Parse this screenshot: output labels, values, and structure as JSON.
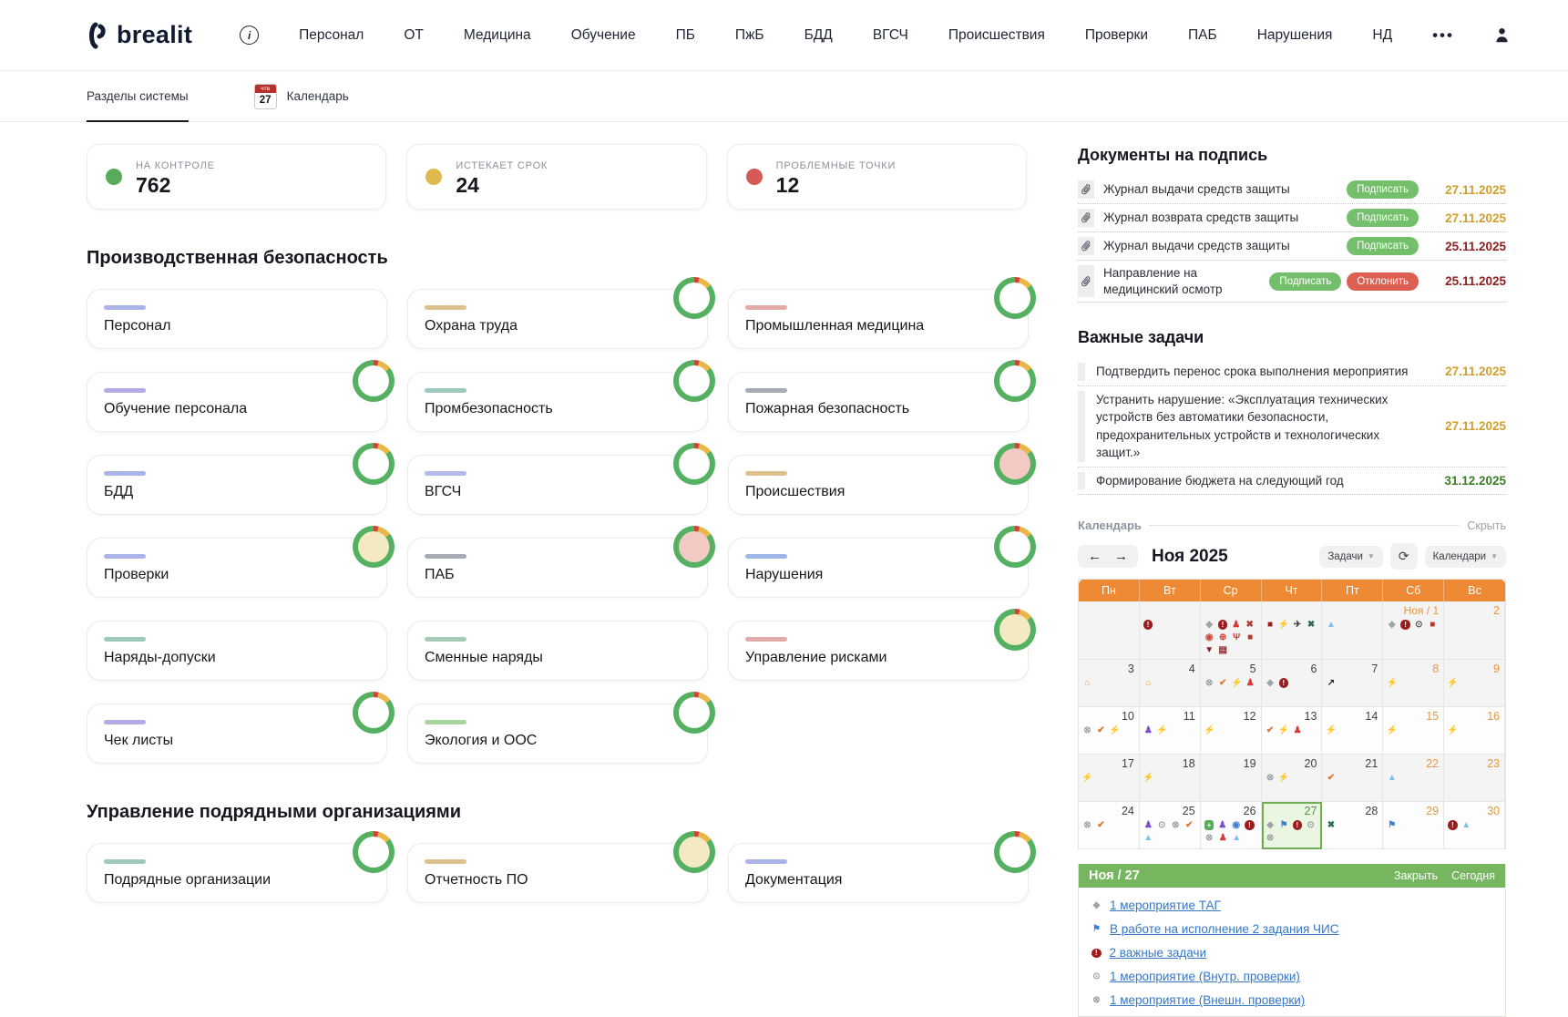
{
  "brand": {
    "name": "brealit"
  },
  "nav": {
    "items": [
      "Персонал",
      "ОТ",
      "Медицина",
      "Обучение",
      "ПБ",
      "ПжБ",
      "БДД",
      "ВГСЧ",
      "Происшествия",
      "Проверки",
      "ПАБ",
      "Нарушения",
      "НД"
    ],
    "more_label": "•••"
  },
  "tabs": {
    "sections_label": "Разделы системы",
    "calendar_label": "Календарь",
    "calendar_icon_dow": "чтв",
    "calendar_icon_day": "27"
  },
  "stats": [
    {
      "label": "НА КОНТРОЛЕ",
      "value": "762",
      "color": "#57ab5a"
    },
    {
      "label": "ИСТЕКАЕТ СРОК",
      "value": "24",
      "color": "#e0b94e"
    },
    {
      "label": "ПРОБЛЕМНЫЕ ТОЧКИ",
      "value": "12",
      "color": "#d45b55"
    }
  ],
  "sections": [
    {
      "title": "Производственная безопасность",
      "cards": [
        {
          "title": "Персонал",
          "tag_color": "#aab4e8",
          "donut": "none"
        },
        {
          "title": "Охрана труда",
          "tag_color": "#dec08f",
          "donut": "white"
        },
        {
          "title": "Промышленная медицина",
          "tag_color": "#e4a9a9",
          "donut": "white"
        },
        {
          "title": "Обучение персонала",
          "tag_color": "#b3aae6",
          "donut": "white"
        },
        {
          "title": "Промбезопасность",
          "tag_color": "#9fc9bd",
          "donut": "white"
        },
        {
          "title": "Пожарная безопасность",
          "tag_color": "#a7abb3",
          "donut": "white"
        },
        {
          "title": "БДД",
          "tag_color": "#aab4e8",
          "donut": "white"
        },
        {
          "title": "ВГСЧ",
          "tag_color": "#b3b9ea",
          "donut": "white"
        },
        {
          "title": "Происшествия",
          "tag_color": "#dec08f",
          "donut": "red"
        },
        {
          "title": "Проверки",
          "tag_color": "#aab4e8",
          "donut": "yellow"
        },
        {
          "title": "ПАБ",
          "tag_color": "#a7abb3",
          "donut": "red"
        },
        {
          "title": "Нарушения",
          "tag_color": "#9fb6e8",
          "donut": "white"
        },
        {
          "title": "Наряды-допуски",
          "tag_color": "#9fc9bd",
          "donut": "none"
        },
        {
          "title": "Сменные наряды",
          "tag_color": "#a8c9b5",
          "donut": "none"
        },
        {
          "title": "Управление рисками",
          "tag_color": "#e4a9a9",
          "donut": "yellow"
        },
        {
          "title": "Чек листы",
          "tag_color": "#b3aae6",
          "donut": "white"
        },
        {
          "title": "Экология и ООС",
          "tag_color": "#a8d4a0",
          "donut": "white"
        }
      ]
    },
    {
      "title": "Управление подрядными организациями",
      "cards": [
        {
          "title": "Подрядные организации",
          "tag_color": "#9fc9bd",
          "donut": "white"
        },
        {
          "title": "Отчетность ПО",
          "tag_color": "#dec08f",
          "donut": "yellow"
        },
        {
          "title": "Документация",
          "tag_color": "#aab4e8",
          "donut": "white"
        }
      ]
    }
  ],
  "documents": {
    "title": "Документы на подпись",
    "sign_label": "Подписать",
    "decline_label": "Отклонить",
    "items": [
      {
        "name": "Журнал выдачи средств защиты",
        "decline": false,
        "date": "27.11.2025",
        "date_color": "gold"
      },
      {
        "name": "Журнал возврата средств защиты",
        "decline": false,
        "date": "27.11.2025",
        "date_color": "gold"
      },
      {
        "name": "Журнал выдачи средств защиты",
        "decline": false,
        "date": "25.11.2025",
        "date_color": "red"
      },
      {
        "name": "Направление на медицинский осмотр",
        "decline": true,
        "date": "25.11.2025",
        "date_color": "red"
      }
    ]
  },
  "tasks": {
    "title": "Важные задачи",
    "items": [
      {
        "text": "Подтвердить перенос срока выполнения мероприятия",
        "date": "27.11.2025",
        "date_color": "gold"
      },
      {
        "text": "Устранить нарушение: «Эксплуатация технических устройств без автоматики безопасности, предохранительных устройств и технологических защит.»",
        "date": "27.11.2025",
        "date_color": "gold"
      },
      {
        "text": "Формирование бюджета на следующий год",
        "date": "31.12.2025",
        "date_color": "green"
      }
    ]
  },
  "calendar": {
    "label": "Календарь",
    "hide_label": "Скрыть",
    "prev": "←",
    "next": "→",
    "month": "Ноя 2025",
    "tasks_filter_label": "Задачи",
    "calendars_filter_label": "Календари",
    "refresh_glyph": "⟳",
    "weekdays": [
      "Пн",
      "Вт",
      "Ср",
      "Чт",
      "Пт",
      "Сб",
      "Вс"
    ],
    "weeks": [
      {
        "shade": "g",
        "days": [
          {},
          {
            "icons": [
              "alert"
            ]
          },
          {
            "icons": [
              "tag",
              "alert",
              "person-red",
              "wrench",
              "medal",
              "magnifier",
              "fork",
              "briefcase-red",
              "pin",
              "wallet"
            ]
          },
          {
            "icons": [
              "book-red",
              "lightning",
              "bird-dark",
              "tools-green"
            ]
          },
          {
            "icons": [
              "cone-blue"
            ]
          },
          {
            "label": "Ноя / 1",
            "icons": [
              "tag",
              "alert",
              "clock-dark",
              "briefcase-red"
            ]
          },
          {
            "date": "2",
            "weekend": true
          }
        ]
      },
      {
        "shade": "g",
        "days": [
          {
            "date": "3",
            "icons": [
              "house-orange"
            ]
          },
          {
            "date": "4",
            "icons": [
              "house-orange"
            ]
          },
          {
            "date": "5",
            "icons": [
              "tag-x",
              "check-orange",
              "lightning",
              "person-red"
            ]
          },
          {
            "date": "6",
            "icons": [
              "tag",
              "alert"
            ]
          },
          {
            "date": "7",
            "icons": [
              "dart-dark"
            ]
          },
          {
            "date": "8",
            "weekend": true,
            "icons": [
              "lightning"
            ]
          },
          {
            "date": "9",
            "weekend": true,
            "icons": [
              "lightning"
            ]
          }
        ]
      },
      {
        "shade": "w",
        "days": [
          {
            "date": "10",
            "icons": [
              "tag-x",
              "check-orange",
              "lightning"
            ]
          },
          {
            "date": "11",
            "icons": [
              "group-purple",
              "lightning"
            ]
          },
          {
            "date": "12",
            "icons": [
              "lightning"
            ]
          },
          {
            "date": "13",
            "icons": [
              "check-orange",
              "lightning",
              "person-red"
            ]
          },
          {
            "date": "14",
            "icons": [
              "lightning"
            ]
          },
          {
            "date": "15",
            "weekend": true,
            "icons": [
              "lightning"
            ]
          },
          {
            "date": "16",
            "weekend": true,
            "icons": [
              "lightning"
            ]
          }
        ]
      },
      {
        "shade": "g",
        "days": [
          {
            "date": "17",
            "icons": [
              "lightning"
            ]
          },
          {
            "date": "18",
            "icons": [
              "lightning"
            ]
          },
          {
            "date": "19"
          },
          {
            "date": "20",
            "icons": [
              "tag-x",
              "lightning"
            ]
          },
          {
            "date": "21",
            "icons": [
              "check-orange"
            ]
          },
          {
            "date": "22",
            "weekend": true,
            "icons": [
              "cone-blue"
            ]
          },
          {
            "date": "23",
            "weekend": true
          }
        ]
      },
      {
        "shade": "w",
        "days": [
          {
            "date": "24",
            "icons": [
              "tag-x",
              "check-orange"
            ]
          },
          {
            "date": "25",
            "icons": [
              "group-purple",
              "clock-gray",
              "tag-x",
              "check-orange",
              "cone-blue"
            ]
          },
          {
            "date": "26",
            "icons": [
              "plus-green",
              "group-purple",
              "eye-blue",
              "alert",
              "tag-x",
              "person-red",
              "cone-blue"
            ]
          },
          {
            "date": "27",
            "selected": true,
            "icons": [
              "tag",
              "chart-blue",
              "alert",
              "clock-gray",
              "tag-x"
            ]
          },
          {
            "date": "28",
            "icons": [
              "tools-green"
            ]
          },
          {
            "date": "29",
            "weekend": true,
            "icons": [
              "chart-blue"
            ]
          },
          {
            "date": "30",
            "weekend": true,
            "icons": [
              "alert",
              "cone-blue"
            ]
          }
        ]
      }
    ]
  },
  "day_panel": {
    "title": "Ноя / 27",
    "close_label": "Закрыть",
    "today_label": "Сегодня",
    "events": [
      {
        "icon": "tag",
        "text": "1 мероприятие ТАГ"
      },
      {
        "icon": "chart-blue",
        "text": "В работе на исполнение 2 задания ЧИС"
      },
      {
        "icon": "alert",
        "text": "2 важные задачи"
      },
      {
        "icon": "clock-gray",
        "text": "1 мероприятие (Внутр. проверки)"
      },
      {
        "icon": "tag-x",
        "text": "1 мероприятие (Внешн. проверки)"
      }
    ]
  },
  "colors": {
    "accent_orange": "#ee8a33",
    "panel_green": "#76b65e",
    "sign_green": "#74bf6b",
    "decline_red": "#dd5f52",
    "date_gold": "#cf9f2e",
    "date_red": "#8f1f1f",
    "date_green": "#3e7d28",
    "link_blue": "#3577c8",
    "donut_fill_yellow": "#f3e9c3",
    "donut_fill_red": "#f3c9c3"
  }
}
